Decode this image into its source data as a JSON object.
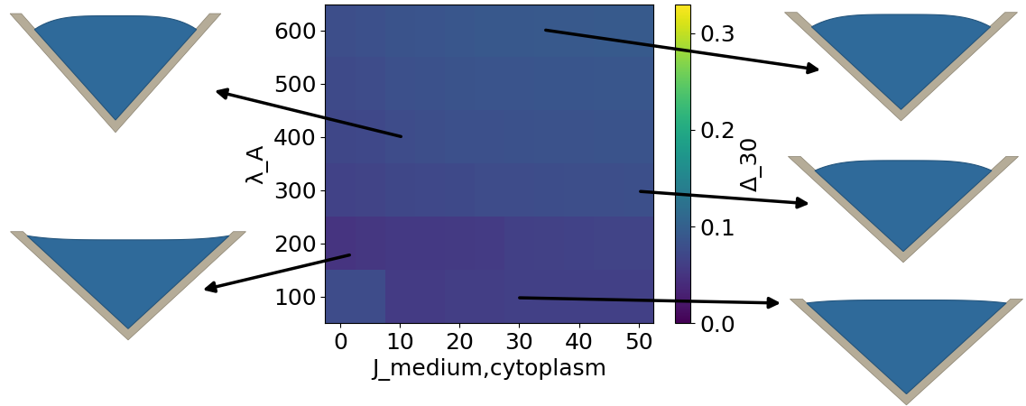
{
  "chart_data": {
    "type": "heatmap",
    "x": [
      0,
      5,
      10,
      15,
      20,
      25,
      30,
      35,
      40,
      45,
      50
    ],
    "y": [
      100,
      200,
      300,
      400,
      500,
      600
    ],
    "values": [
      [
        0.075,
        0.075,
        0.058,
        0.058,
        0.06,
        0.06,
        0.062,
        0.062,
        0.063,
        0.063,
        0.063
      ],
      [
        0.05,
        0.052,
        0.055,
        0.055,
        0.056,
        0.058,
        0.062,
        0.064,
        0.065,
        0.066,
        0.066
      ],
      [
        0.065,
        0.066,
        0.07,
        0.072,
        0.073,
        0.075,
        0.076,
        0.077,
        0.078,
        0.078,
        0.079
      ],
      [
        0.07,
        0.072,
        0.075,
        0.078,
        0.08,
        0.081,
        0.082,
        0.083,
        0.083,
        0.084,
        0.084
      ],
      [
        0.074,
        0.076,
        0.08,
        0.082,
        0.085,
        0.086,
        0.086,
        0.087,
        0.087,
        0.088,
        0.088
      ],
      [
        0.078,
        0.08,
        0.084,
        0.086,
        0.088,
        0.09,
        0.09,
        0.091,
        0.091,
        0.092,
        0.092
      ]
    ],
    "xlabel": "J_medium,cytoplasm",
    "ylabel": "λ_A",
    "xlim": [
      -2.5,
      52.5
    ],
    "ylim": [
      50,
      650
    ],
    "xticks": [
      0,
      10,
      20,
      30,
      40,
      50
    ],
    "yticks": [
      100,
      200,
      300,
      400,
      500,
      600
    ],
    "color": "viridis",
    "colorbar": {
      "label": "Δ_30",
      "range": [
        0,
        0.33
      ],
      "ticks": [
        0.0,
        0.1,
        0.2,
        0.3
      ]
    }
  }
}
